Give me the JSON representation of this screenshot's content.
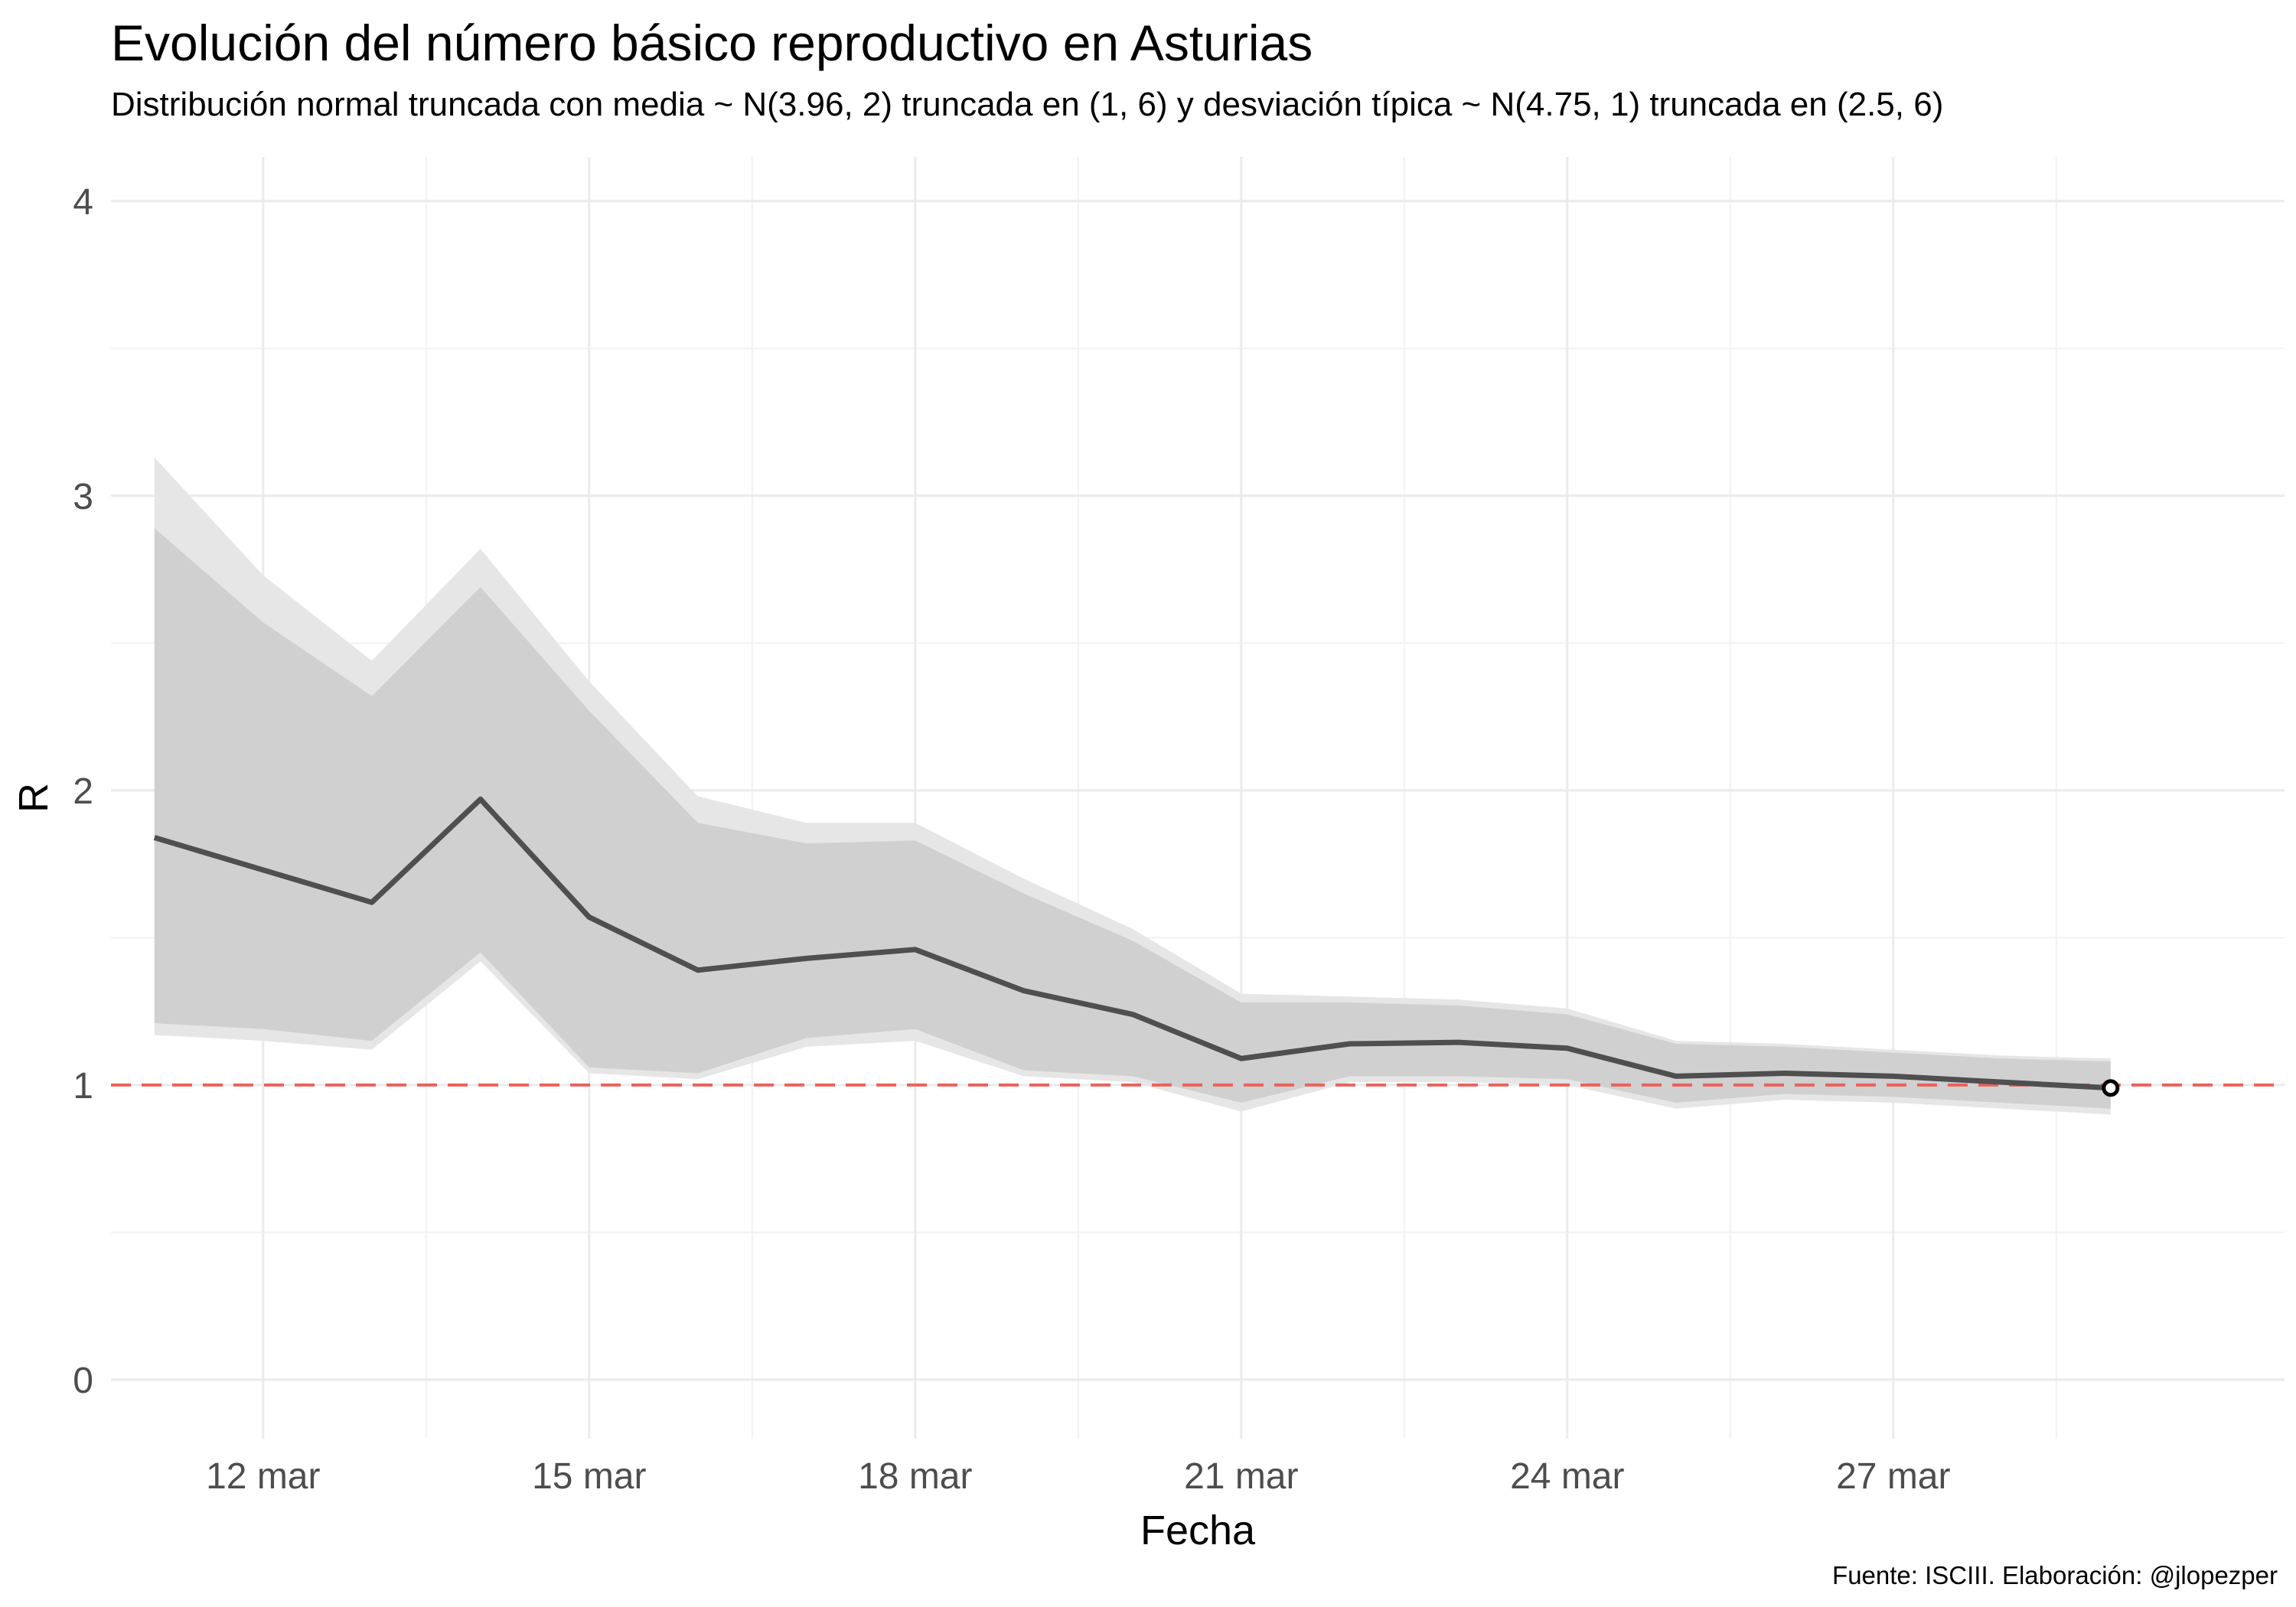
{
  "title": "Evolución del número básico reproductivo en Asturias",
  "subtitle": "Distribución normal truncada con media ~ N(3.96, 2) truncada en (1, 6) y desviación típica ~ N(4.75, 1) truncada en (2.5, 6)",
  "caption": "Fuente: ISCIII. Elaboración: @jlopezper",
  "chart_data": {
    "type": "line",
    "title": "Evolución del número básico reproductivo en Asturias",
    "xlabel": "Fecha",
    "ylabel": "R",
    "ylim": [
      -0.2,
      4.15
    ],
    "xlim": [
      10.6,
      30.6
    ],
    "y_ticks": [
      0,
      1,
      2,
      3,
      4
    ],
    "x_ticks": [
      12,
      15,
      18,
      21,
      24,
      27
    ],
    "x_tick_labels": [
      "12 mar",
      "15 mar",
      "18 mar",
      "21 mar",
      "24 mar",
      "27 mar"
    ],
    "x_unit": "day of March",
    "grid": true,
    "legend": "none",
    "reference_line": {
      "y": 1,
      "style": "dashed",
      "color": "#e8635b"
    },
    "series": [
      {
        "kind": "line",
        "color": "#4f4f4f",
        "x": [
          11,
          12,
          13,
          14,
          15,
          16,
          17,
          18,
          19,
          20,
          21,
          22,
          23,
          24,
          25,
          26,
          27,
          28,
          29
        ],
        "values": [
          1.84,
          1.73,
          1.62,
          1.97,
          1.57,
          1.39,
          1.43,
          1.46,
          1.32,
          1.24,
          1.09,
          1.14,
          1.145,
          1.125,
          1.03,
          1.04,
          1.03,
          1.01,
          0.99
        ]
      }
    ],
    "bands": [
      {
        "kind": "outer",
        "color": "#e6e6e6",
        "x": [
          11,
          12,
          13,
          14,
          15,
          16,
          17,
          18,
          19,
          20,
          21,
          22,
          23,
          24,
          25,
          26,
          27,
          28,
          29
        ],
        "lower": [
          1.17,
          1.15,
          1.12,
          1.42,
          1.04,
          1.02,
          1.13,
          1.15,
          1.03,
          1.01,
          0.91,
          1.01,
          1.01,
          1.0,
          0.92,
          0.95,
          0.94,
          0.92,
          0.9
        ],
        "upper": [
          3.13,
          2.73,
          2.44,
          2.82,
          2.37,
          1.98,
          1.89,
          1.89,
          1.7,
          1.53,
          1.31,
          1.3,
          1.29,
          1.26,
          1.15,
          1.14,
          1.12,
          1.1,
          1.09
        ]
      },
      {
        "kind": "inner",
        "color": "#d0d0d0",
        "x": [
          11,
          12,
          13,
          14,
          15,
          16,
          17,
          18,
          19,
          20,
          21,
          22,
          23,
          24,
          25,
          26,
          27,
          28,
          29
        ],
        "lower": [
          1.21,
          1.19,
          1.15,
          1.45,
          1.06,
          1.04,
          1.16,
          1.19,
          1.05,
          1.03,
          0.94,
          1.03,
          1.03,
          1.02,
          0.94,
          0.97,
          0.96,
          0.94,
          0.92
        ],
        "upper": [
          2.89,
          2.57,
          2.32,
          2.69,
          2.27,
          1.89,
          1.82,
          1.83,
          1.65,
          1.49,
          1.28,
          1.28,
          1.27,
          1.24,
          1.14,
          1.13,
          1.11,
          1.09,
          1.08
        ]
      }
    ],
    "end_point": {
      "x": 29,
      "y": 0.99
    }
  }
}
